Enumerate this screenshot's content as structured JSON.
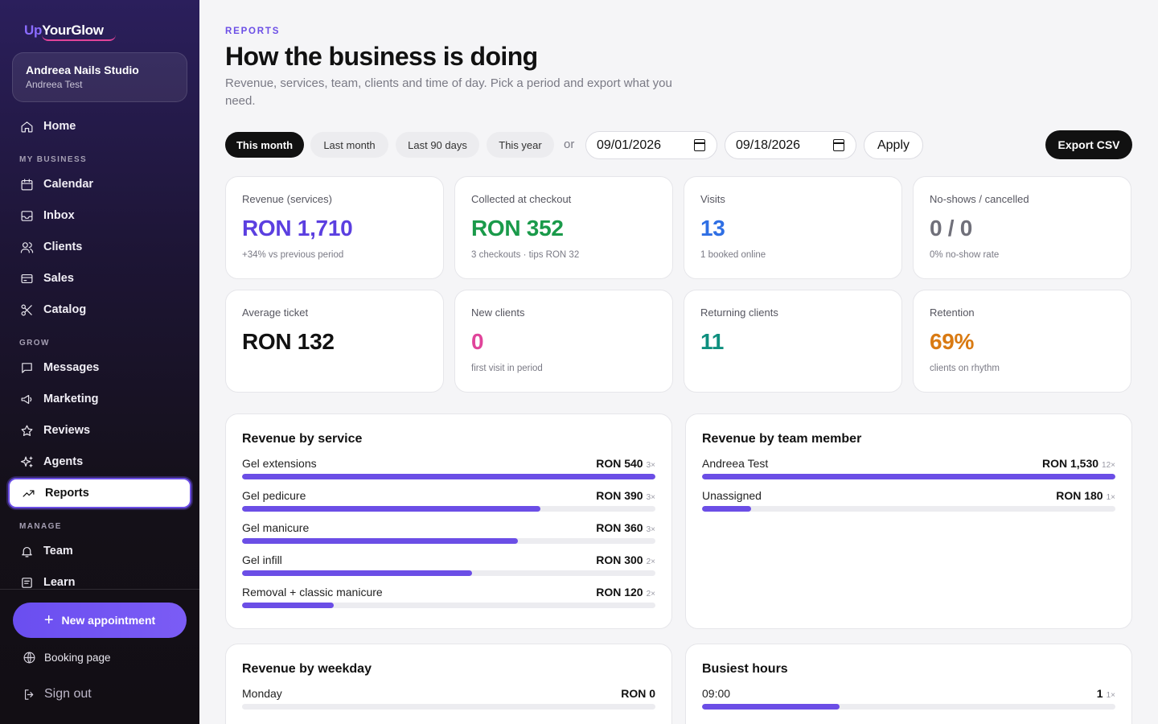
{
  "brand": {
    "up": "Up",
    "name": "YourGlow"
  },
  "studio": {
    "name": "Andreea Nails Studio",
    "user": "Andreea Test"
  },
  "nav": {
    "home": "Home",
    "section_business": "MY BUSINESS",
    "calendar": "Calendar",
    "inbox": "Inbox",
    "clients": "Clients",
    "sales": "Sales",
    "catalog": "Catalog",
    "section_grow": "GROW",
    "messages": "Messages",
    "marketing": "Marketing",
    "reviews": "Reviews",
    "agents": "Agents",
    "reports": "Reports",
    "section_manage": "MANAGE",
    "team": "Team",
    "learn": "Learn"
  },
  "sidebar_footer": {
    "new_appointment": "New appointment",
    "booking_page": "Booking page",
    "sign_out": "Sign out"
  },
  "header": {
    "eyebrow": "REPORTS",
    "title": "How the business is doing",
    "subtitle": "Revenue, services, team, clients and time of day. Pick a period and export what you need."
  },
  "filters": {
    "this_month": "This month",
    "last_month": "Last month",
    "last_90": "Last 90 days",
    "this_year": "This year",
    "or": "or",
    "from_date": "09/01/2026",
    "to_date": "09/18/2026",
    "apply": "Apply",
    "export": "Export CSV"
  },
  "kpis": {
    "revenue": {
      "label": "Revenue (services)",
      "value": "RON 1,710",
      "note": "+34% vs previous period",
      "color": "#5b3fe0"
    },
    "collected": {
      "label": "Collected at checkout",
      "value": "RON 352",
      "note": "3 checkouts · tips RON 32",
      "color": "#1a9a4a"
    },
    "visits": {
      "label": "Visits",
      "value": "13",
      "note": "1 booked online",
      "color": "#2f6fe4"
    },
    "noshows": {
      "label": "No-shows / cancelled",
      "value": "0 / 0",
      "note": "0% no-show rate",
      "color": "#70707a"
    },
    "avg_ticket": {
      "label": "Average ticket",
      "value": "RON 132",
      "note": "",
      "color": "#111111"
    },
    "new_clients": {
      "label": "New clients",
      "value": "0",
      "note": "first visit in period",
      "color": "#e0449a"
    },
    "returning": {
      "label": "Returning clients",
      "value": "11",
      "note": "",
      "color": "#0e8f7e"
    },
    "retention": {
      "label": "Retention",
      "value": "69%",
      "note": "clients on rhythm",
      "color": "#d97a12"
    }
  },
  "revenue_by_service": {
    "title": "Revenue by service",
    "rows": [
      {
        "label": "Gel extensions",
        "value": "RON 540",
        "count": "3×",
        "share": 1.0
      },
      {
        "label": "Gel pedicure",
        "value": "RON 390",
        "count": "3×",
        "share": 0.722
      },
      {
        "label": "Gel manicure",
        "value": "RON 360",
        "count": "3×",
        "share": 0.667
      },
      {
        "label": "Gel infill",
        "value": "RON 300",
        "count": "2×",
        "share": 0.556
      },
      {
        "label": "Removal + classic manicure",
        "value": "RON 120",
        "count": "2×",
        "share": 0.222
      }
    ]
  },
  "revenue_by_team": {
    "title": "Revenue by team member",
    "rows": [
      {
        "label": "Andreea Test",
        "value": "RON 1,530",
        "count": "12×",
        "share": 1.0
      },
      {
        "label": "Unassigned",
        "value": "RON 180",
        "count": "1×",
        "share": 0.118
      }
    ]
  },
  "revenue_by_weekday": {
    "title": "Revenue by weekday",
    "rows": [
      {
        "label": "Monday",
        "value": "RON 0",
        "count": "",
        "share": 0
      }
    ]
  },
  "busiest_hours": {
    "title": "Busiest hours",
    "rows": [
      {
        "label": "09:00",
        "value": "1",
        "count": "1×",
        "share": 0.333
      }
    ]
  }
}
